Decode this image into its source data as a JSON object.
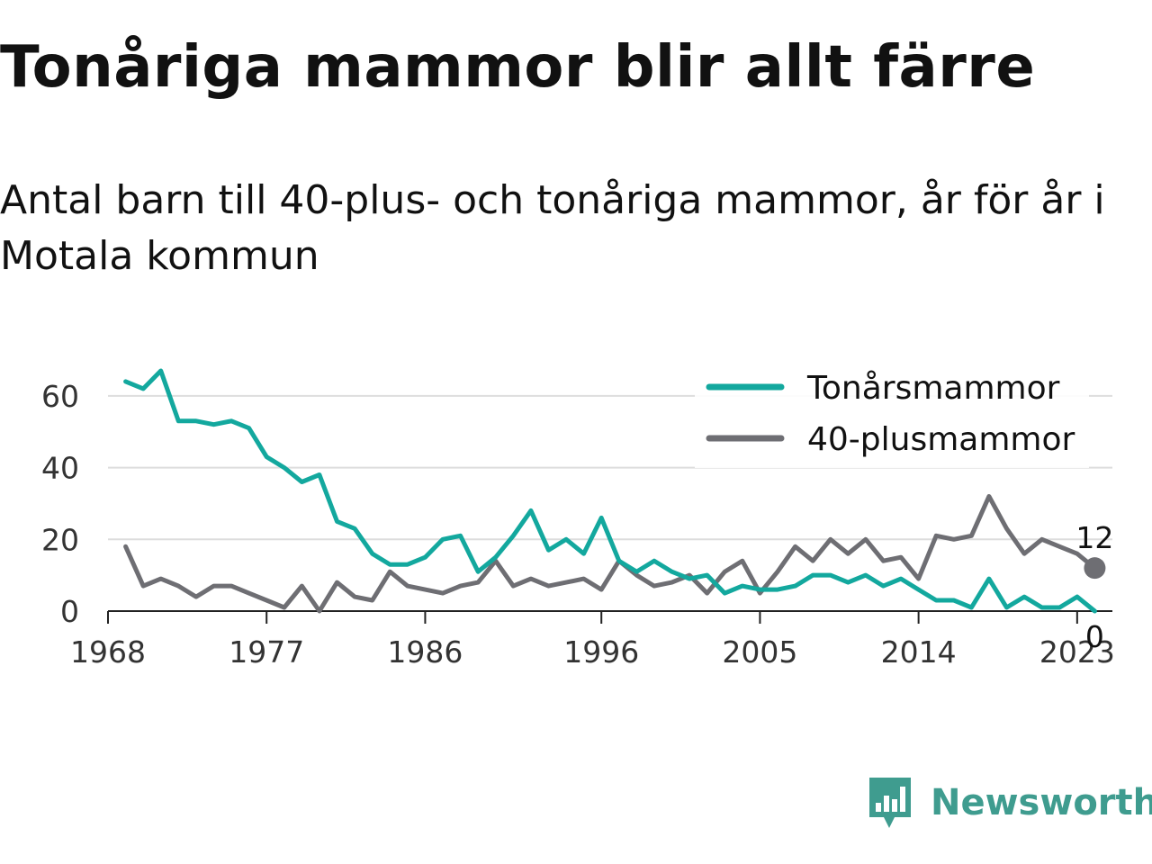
{
  "title": "Tonåriga mammor blir allt färre",
  "subtitle": "Antal barn till 40-plus- och tonåriga mammor, år för år i Motala kommun",
  "brand": {
    "name": "Newsworthy",
    "color": "#3f9c8f",
    "icon": "bar-chart-speech-bubble-icon"
  },
  "chart_data": {
    "type": "line",
    "x": [
      1969,
      1970,
      1971,
      1972,
      1973,
      1974,
      1975,
      1976,
      1977,
      1978,
      1979,
      1980,
      1981,
      1982,
      1983,
      1984,
      1985,
      1986,
      1987,
      1988,
      1989,
      1990,
      1991,
      1992,
      1993,
      1994,
      1995,
      1996,
      1997,
      1998,
      1999,
      2000,
      2001,
      2002,
      2003,
      2004,
      2005,
      2006,
      2007,
      2008,
      2009,
      2010,
      2011,
      2012,
      2013,
      2014,
      2015,
      2016,
      2017,
      2018,
      2019,
      2020,
      2021,
      2022,
      2023,
      2024
    ],
    "series": [
      {
        "name": "Tonårsmammor",
        "color": "#13a89e",
        "values": [
          64,
          62,
          67,
          53,
          53,
          52,
          53,
          51,
          43,
          40,
          36,
          38,
          25,
          23,
          16,
          13,
          13,
          15,
          20,
          21,
          11,
          15,
          21,
          28,
          17,
          20,
          16,
          26,
          14,
          11,
          14,
          11,
          9,
          10,
          5,
          7,
          6,
          6,
          7,
          10,
          10,
          8,
          10,
          7,
          9,
          6,
          3,
          3,
          1,
          9,
          1,
          4,
          1,
          1,
          4,
          0
        ]
      },
      {
        "name": "40-plusmammor",
        "color": "#6e6e73",
        "values": [
          18,
          7,
          9,
          7,
          4,
          7,
          7,
          5,
          3,
          1,
          7,
          0,
          8,
          4,
          3,
          11,
          7,
          6,
          5,
          7,
          8,
          14,
          7,
          9,
          7,
          8,
          9,
          6,
          14,
          10,
          7,
          8,
          10,
          5,
          11,
          14,
          5,
          11,
          18,
          14,
          20,
          16,
          20,
          14,
          15,
          9,
          21,
          20,
          21,
          32,
          23,
          16,
          20,
          18,
          16,
          12
        ]
      }
    ],
    "x_ticks": [
      "1968",
      "1977",
      "1986",
      "1996",
      "2005",
      "2014",
      "2023"
    ],
    "y_ticks": [
      "0",
      "20",
      "40",
      "60"
    ],
    "xlim": [
      1968,
      2025
    ],
    "ylim": [
      0,
      70
    ],
    "grid": "horizontal",
    "legend": "top-right",
    "end_labels": [
      {
        "series": "40-plusmammor",
        "text": "12"
      },
      {
        "series": "Tonårsmammor",
        "text": "0"
      }
    ]
  }
}
